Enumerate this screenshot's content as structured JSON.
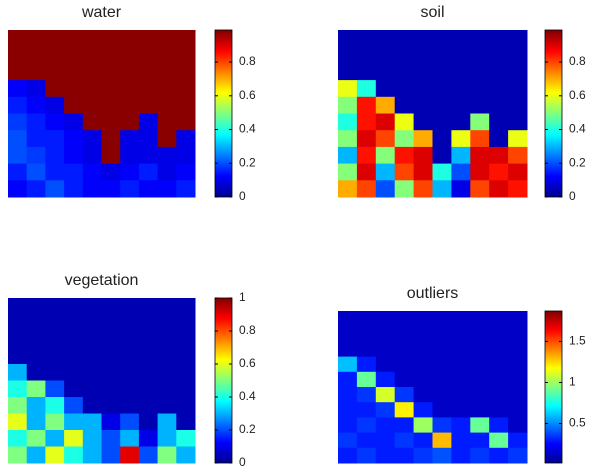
{
  "chart_data": [
    {
      "type": "heatmap",
      "title": "water",
      "colormap": "jet",
      "clim": [
        0,
        0.99
      ],
      "cticks": [
        0,
        0.2,
        0.4,
        0.6,
        0.8
      ],
      "z": [
        [
          0.98,
          0.98,
          0.98,
          0.98,
          0.98,
          0.98,
          0.98,
          0.98,
          0.98,
          0.98
        ],
        [
          0.98,
          0.98,
          0.98,
          0.98,
          0.98,
          0.98,
          0.98,
          0.98,
          0.98,
          0.98
        ],
        [
          0.98,
          0.98,
          0.98,
          0.98,
          0.98,
          0.98,
          0.98,
          0.98,
          0.98,
          0.98
        ],
        [
          0.12,
          0.1,
          0.98,
          0.98,
          0.98,
          0.98,
          0.98,
          0.98,
          0.98,
          0.98
        ],
        [
          0.15,
          0.12,
          0.1,
          0.98,
          0.98,
          0.98,
          0.98,
          0.98,
          0.98,
          0.98
        ],
        [
          0.18,
          0.15,
          0.12,
          0.1,
          0.98,
          0.98,
          0.98,
          0.1,
          0.98,
          0.98
        ],
        [
          0.2,
          0.15,
          0.15,
          0.12,
          0.1,
          0.98,
          0.1,
          0.1,
          0.98,
          0.1
        ],
        [
          0.2,
          0.18,
          0.15,
          0.12,
          0.1,
          0.98,
          0.1,
          0.1,
          0.1,
          0.1
        ],
        [
          0.15,
          0.2,
          0.15,
          0.15,
          0.12,
          0.1,
          0.12,
          0.15,
          0.1,
          0.12
        ],
        [
          0.12,
          0.15,
          0.2,
          0.15,
          0.12,
          0.12,
          0.15,
          0.12,
          0.12,
          0.15
        ]
      ]
    },
    {
      "type": "heatmap",
      "title": "soil",
      "colormap": "jet",
      "clim": [
        0,
        0.99
      ],
      "cticks": [
        0,
        0.2,
        0.4,
        0.6,
        0.8
      ],
      "z": [
        [
          0.05,
          0.05,
          0.05,
          0.05,
          0.05,
          0.05,
          0.05,
          0.05,
          0.05,
          0.05
        ],
        [
          0.05,
          0.05,
          0.05,
          0.05,
          0.05,
          0.05,
          0.05,
          0.05,
          0.05,
          0.05
        ],
        [
          0.05,
          0.05,
          0.05,
          0.05,
          0.05,
          0.05,
          0.05,
          0.05,
          0.05,
          0.05
        ],
        [
          0.6,
          0.4,
          0.05,
          0.05,
          0.05,
          0.05,
          0.05,
          0.05,
          0.05,
          0.05
        ],
        [
          0.5,
          0.85,
          0.7,
          0.05,
          0.05,
          0.05,
          0.05,
          0.05,
          0.05,
          0.05
        ],
        [
          0.4,
          0.85,
          0.9,
          0.6,
          0.05,
          0.05,
          0.05,
          0.5,
          0.05,
          0.05
        ],
        [
          0.5,
          0.9,
          0.8,
          0.5,
          0.7,
          0.05,
          0.6,
          0.8,
          0.05,
          0.6
        ],
        [
          0.3,
          0.85,
          0.5,
          0.85,
          0.9,
          0.05,
          0.3,
          0.9,
          0.9,
          0.8
        ],
        [
          0.5,
          0.9,
          0.3,
          0.8,
          0.9,
          0.4,
          0.2,
          0.9,
          0.85,
          0.9
        ],
        [
          0.7,
          0.8,
          0.2,
          0.5,
          0.8,
          0.3,
          0.1,
          0.8,
          0.9,
          0.85
        ]
      ]
    },
    {
      "type": "heatmap",
      "title": "vegetation",
      "colormap": "jet",
      "clim": [
        0,
        1
      ],
      "cticks": [
        0,
        0.2,
        0.4,
        0.6,
        0.8,
        1
      ],
      "z": [
        [
          0.05,
          0.05,
          0.05,
          0.05,
          0.05,
          0.05,
          0.05,
          0.05,
          0.05,
          0.05
        ],
        [
          0.05,
          0.05,
          0.05,
          0.05,
          0.05,
          0.05,
          0.05,
          0.05,
          0.05,
          0.05
        ],
        [
          0.05,
          0.05,
          0.05,
          0.05,
          0.05,
          0.05,
          0.05,
          0.05,
          0.05,
          0.05
        ],
        [
          0.05,
          0.05,
          0.05,
          0.05,
          0.05,
          0.05,
          0.05,
          0.05,
          0.05,
          0.05
        ],
        [
          0.3,
          0.05,
          0.05,
          0.05,
          0.05,
          0.05,
          0.05,
          0.05,
          0.05,
          0.05
        ],
        [
          0.4,
          0.5,
          0.2,
          0.05,
          0.05,
          0.05,
          0.05,
          0.05,
          0.05,
          0.05
        ],
        [
          0.5,
          0.3,
          0.4,
          0.2,
          0.05,
          0.05,
          0.05,
          0.05,
          0.05,
          0.05
        ],
        [
          0.6,
          0.3,
          0.5,
          0.3,
          0.3,
          0.1,
          0.2,
          0.05,
          0.3,
          0.05
        ],
        [
          0.4,
          0.5,
          0.3,
          0.6,
          0.3,
          0.2,
          0.3,
          0.1,
          0.3,
          0.4
        ],
        [
          0.5,
          0.3,
          0.6,
          0.4,
          0.3,
          0.2,
          0.9,
          0.2,
          0.5,
          0.3
        ]
      ]
    },
    {
      "type": "heatmap",
      "title": "outliers",
      "colormap": "jet",
      "clim": [
        0.02,
        1.87
      ],
      "cticks": [
        0.5,
        1,
        1.5
      ],
      "z": [
        [
          0.15,
          0.15,
          0.15,
          0.15,
          0.15,
          0.15,
          0.15,
          0.15,
          0.15,
          0.15
        ],
        [
          0.15,
          0.15,
          0.15,
          0.15,
          0.15,
          0.15,
          0.15,
          0.15,
          0.15,
          0.15
        ],
        [
          0.15,
          0.15,
          0.15,
          0.15,
          0.15,
          0.15,
          0.15,
          0.15,
          0.15,
          0.15
        ],
        [
          0.6,
          0.3,
          0.15,
          0.15,
          0.15,
          0.15,
          0.15,
          0.15,
          0.15,
          0.15
        ],
        [
          0.3,
          0.9,
          0.3,
          0.15,
          0.15,
          0.15,
          0.15,
          0.15,
          0.15,
          0.15
        ],
        [
          0.3,
          0.35,
          1.1,
          0.35,
          0.15,
          0.15,
          0.15,
          0.15,
          0.15,
          0.15
        ],
        [
          0.3,
          0.3,
          0.35,
          1.2,
          0.3,
          0.15,
          0.15,
          0.15,
          0.15,
          0.15
        ],
        [
          0.3,
          0.35,
          0.3,
          0.3,
          1.0,
          0.35,
          0.3,
          0.9,
          0.3,
          0.15
        ],
        [
          0.35,
          0.3,
          0.3,
          0.35,
          0.3,
          1.3,
          0.3,
          0.3,
          0.9,
          0.3
        ],
        [
          0.3,
          0.35,
          0.3,
          0.3,
          0.35,
          0.4,
          0.3,
          0.35,
          0.3,
          0.35
        ]
      ]
    }
  ]
}
